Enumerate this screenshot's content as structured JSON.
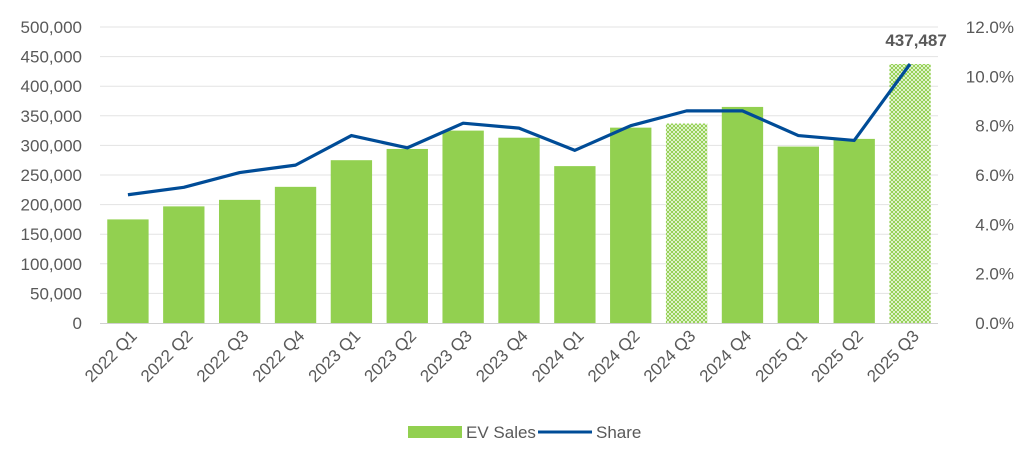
{
  "chart_data": {
    "type": "bar",
    "categories": [
      "2022 Q1",
      "2022 Q2",
      "2022 Q3",
      "2022 Q4",
      "2023 Q1",
      "2023 Q2",
      "2023 Q3",
      "2023 Q4",
      "2024 Q1",
      "2024 Q2",
      "2024 Q3",
      "2024 Q4",
      "2025 Q1",
      "2025 Q2",
      "2025 Q3"
    ],
    "series": [
      {
        "name": "EV Sales",
        "type": "bar",
        "axis": "left",
        "color": "#92D050",
        "values": [
          175000,
          197000,
          208000,
          230000,
          275000,
          294000,
          325000,
          313000,
          265000,
          330000,
          337000,
          365000,
          298000,
          311000,
          437487
        ],
        "hatched": [
          false,
          false,
          false,
          false,
          false,
          false,
          false,
          false,
          false,
          false,
          true,
          false,
          false,
          false,
          true
        ]
      },
      {
        "name": "Share",
        "type": "line",
        "axis": "right",
        "color": "#004C97",
        "values": [
          5.2,
          5.5,
          6.1,
          6.4,
          7.6,
          7.1,
          8.1,
          7.9,
          7.0,
          8.0,
          8.6,
          8.6,
          7.6,
          7.4,
          10.5
        ]
      }
    ],
    "y_left": {
      "min": 0,
      "max": 500000,
      "step": 50000,
      "tick_labels": [
        "0",
        "50,000",
        "100,000",
        "150,000",
        "200,000",
        "250,000",
        "300,000",
        "350,000",
        "400,000",
        "450,000",
        "500,000"
      ]
    },
    "y_right": {
      "min": 0,
      "max": 12,
      "step": 2,
      "tick_labels": [
        "0.0%",
        "2.0%",
        "4.0%",
        "6.0%",
        "8.0%",
        "10.0%",
        "12.0%"
      ]
    },
    "annotation": {
      "category": "2025 Q3",
      "text": "437,487"
    },
    "grid": true,
    "legend": "bottom-center",
    "title": "",
    "xlabel": "",
    "ylabel": ""
  }
}
